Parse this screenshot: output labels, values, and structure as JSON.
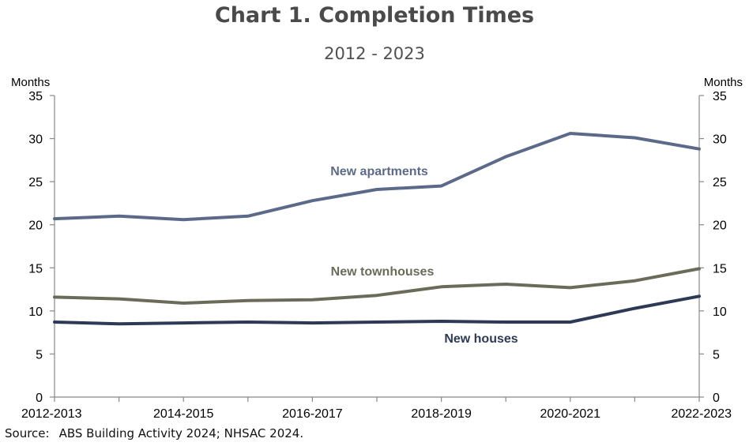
{
  "chart_data": {
    "type": "line",
    "title": "Chart 1. Completion Times",
    "subtitle": "2012 - 2023",
    "ylabel_left": "Months",
    "ylabel_right": "Months",
    "ylim": [
      0,
      35
    ],
    "yticks": [
      0,
      5,
      10,
      15,
      20,
      25,
      30,
      35
    ],
    "x": [
      "2012-2013",
      "2013-2014",
      "2014-2015",
      "2015-2016",
      "2016-2017",
      "2017-2018",
      "2018-2019",
      "2019-2020",
      "2020-2021",
      "2021-2022",
      "2022-2023"
    ],
    "x_tick_labels": [
      "2012-2013",
      "2014-2015",
      "2016-2017",
      "2018-2019",
      "2020-2021",
      "2022-2023"
    ],
    "grid": false,
    "series": [
      {
        "name": "New apartments",
        "color": "#5c6a8a",
        "values": [
          20.7,
          21.0,
          20.6,
          21.0,
          22.8,
          24.1,
          24.5,
          27.9,
          30.6,
          30.1,
          28.8
        ]
      },
      {
        "name": "New townhouses",
        "color": "#6b6b5a",
        "values": [
          11.6,
          11.4,
          10.9,
          11.2,
          11.3,
          11.8,
          12.8,
          13.1,
          12.7,
          13.5,
          14.9
        ]
      },
      {
        "name": "New houses",
        "color": "#2e3a55",
        "values": [
          8.7,
          8.5,
          8.6,
          8.7,
          8.6,
          8.7,
          8.8,
          8.7,
          8.7,
          10.3,
          11.7
        ]
      }
    ]
  },
  "source": {
    "label": "Source:",
    "text": "ABS Building Activity 2024; NHSAC 2024."
  }
}
